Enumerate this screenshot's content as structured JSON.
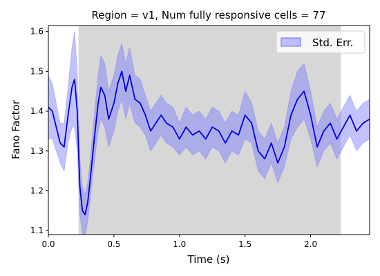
{
  "chart_data": {
    "type": "line",
    "title": "Region = v1, Num fully responsive cells = 77",
    "xlabel": "Time (s)",
    "ylabel": "Fano Factor",
    "xlim": [
      0.0,
      2.45
    ],
    "ylim": [
      1.09,
      1.615
    ],
    "xticks": [
      0.0,
      0.5,
      1.0,
      1.5,
      2.0
    ],
    "xtick_labels": [
      "0.0",
      "0.5",
      "1.0",
      "1.5",
      "2.0"
    ],
    "yticks": [
      1.1,
      1.2,
      1.3,
      1.4,
      1.5,
      1.6
    ],
    "ytick_labels": [
      "1.1",
      "1.2",
      "1.3",
      "1.4",
      "1.5",
      "1.6"
    ],
    "grid": false,
    "legend": {
      "position": "top-right",
      "entries": [
        "Std. Err."
      ]
    },
    "shaded_region": {
      "x_start": 0.23,
      "x_end": 2.23,
      "color": "#d7d7d7"
    },
    "colors": {
      "line": "#0000dd",
      "band": "#7777ff",
      "shade": "#d7d7d7"
    },
    "series": [
      {
        "x": [
          0.0,
          0.03,
          0.06,
          0.09,
          0.12,
          0.15,
          0.18,
          0.2,
          0.22,
          0.23,
          0.24,
          0.26,
          0.28,
          0.3,
          0.32,
          0.35,
          0.38,
          0.4,
          0.43,
          0.46,
          0.5,
          0.53,
          0.56,
          0.59,
          0.62,
          0.66,
          0.7,
          0.74,
          0.78,
          0.82,
          0.86,
          0.9,
          0.95,
          1.0,
          1.05,
          1.1,
          1.15,
          1.2,
          1.25,
          1.3,
          1.35,
          1.4,
          1.45,
          1.5,
          1.55,
          1.6,
          1.65,
          1.7,
          1.75,
          1.8,
          1.85,
          1.9,
          1.95,
          2.0,
          2.05,
          2.1,
          2.15,
          2.2,
          2.25,
          2.3,
          2.35,
          2.4,
          2.45
        ],
        "values": [
          1.41,
          1.4,
          1.36,
          1.32,
          1.31,
          1.39,
          1.46,
          1.48,
          1.4,
          1.3,
          1.21,
          1.15,
          1.14,
          1.17,
          1.23,
          1.33,
          1.42,
          1.46,
          1.44,
          1.38,
          1.42,
          1.47,
          1.5,
          1.45,
          1.49,
          1.43,
          1.42,
          1.39,
          1.35,
          1.37,
          1.39,
          1.37,
          1.36,
          1.33,
          1.36,
          1.34,
          1.35,
          1.33,
          1.36,
          1.35,
          1.32,
          1.35,
          1.34,
          1.39,
          1.37,
          1.3,
          1.28,
          1.32,
          1.27,
          1.31,
          1.39,
          1.43,
          1.45,
          1.39,
          1.31,
          1.35,
          1.37,
          1.33,
          1.36,
          1.39,
          1.35,
          1.37,
          1.38
        ],
        "band": [
          0.08,
          0.07,
          0.06,
          0.05,
          0.06,
          0.07,
          0.1,
          0.12,
          0.1,
          0.08,
          0.07,
          0.06,
          0.05,
          0.05,
          0.05,
          0.06,
          0.07,
          0.08,
          0.08,
          0.07,
          0.07,
          0.07,
          0.07,
          0.07,
          0.07,
          0.06,
          0.06,
          0.05,
          0.05,
          0.05,
          0.05,
          0.05,
          0.05,
          0.04,
          0.05,
          0.05,
          0.05,
          0.05,
          0.05,
          0.05,
          0.05,
          0.05,
          0.05,
          0.06,
          0.05,
          0.05,
          0.05,
          0.05,
          0.05,
          0.05,
          0.06,
          0.07,
          0.07,
          0.06,
          0.05,
          0.05,
          0.05,
          0.05,
          0.05,
          0.05,
          0.05,
          0.05,
          0.05
        ]
      }
    ]
  }
}
